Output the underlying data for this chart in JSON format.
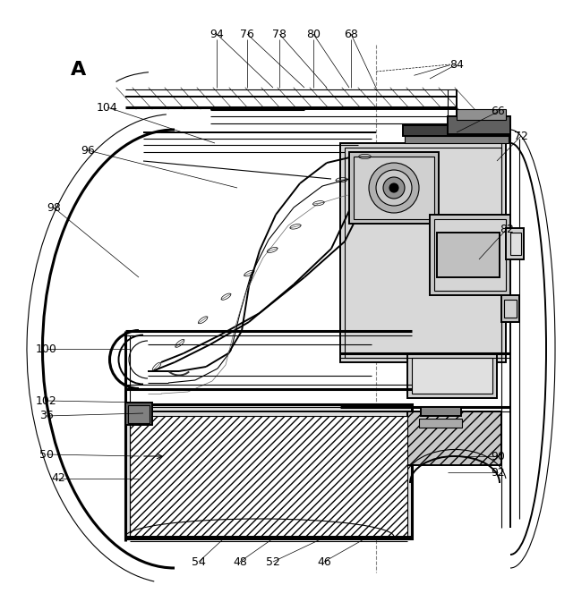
{
  "bg_color": "#ffffff",
  "line_color": "#000000",
  "fig_width": 6.4,
  "fig_height": 6.73,
  "ref_labels": [
    [
      "94",
      242,
      38,
      305,
      98
    ],
    [
      "76",
      276,
      38,
      340,
      98
    ],
    [
      "78",
      312,
      38,
      365,
      98
    ],
    [
      "80",
      350,
      38,
      390,
      98
    ],
    [
      "68",
      392,
      38,
      420,
      98
    ],
    [
      "84",
      510,
      72,
      480,
      88
    ],
    [
      "104",
      120,
      120,
      240,
      160
    ],
    [
      "66",
      556,
      125,
      510,
      148
    ],
    [
      "96",
      98,
      168,
      265,
      210
    ],
    [
      "72",
      582,
      152,
      555,
      180
    ],
    [
      "98",
      60,
      232,
      155,
      310
    ],
    [
      "82",
      566,
      256,
      535,
      290
    ],
    [
      "100",
      52,
      390,
      145,
      390
    ],
    [
      "102",
      52,
      448,
      160,
      450
    ],
    [
      "36",
      52,
      465,
      160,
      462
    ],
    [
      "50",
      52,
      508,
      155,
      510
    ],
    [
      "42",
      65,
      535,
      155,
      535
    ],
    [
      "90",
      556,
      510,
      500,
      510
    ],
    [
      "92",
      556,
      528,
      500,
      528
    ],
    [
      "54",
      222,
      628,
      250,
      602
    ],
    [
      "48",
      268,
      628,
      305,
      602
    ],
    [
      "52",
      305,
      628,
      360,
      602
    ],
    [
      "46",
      362,
      628,
      408,
      602
    ]
  ]
}
